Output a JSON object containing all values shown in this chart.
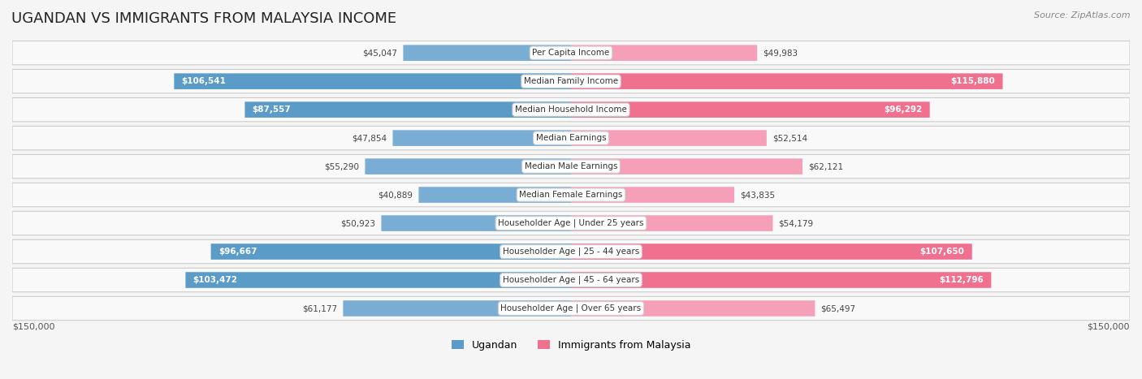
{
  "title": "UGANDAN VS IMMIGRANTS FROM MALAYSIA INCOME",
  "source": "Source: ZipAtlas.com",
  "categories": [
    "Per Capita Income",
    "Median Family Income",
    "Median Household Income",
    "Median Earnings",
    "Median Male Earnings",
    "Median Female Earnings",
    "Householder Age | Under 25 years",
    "Householder Age | 25 - 44 years",
    "Householder Age | 45 - 64 years",
    "Householder Age | Over 65 years"
  ],
  "ugandan_values": [
    45047,
    106541,
    87557,
    47854,
    55290,
    40889,
    50923,
    96667,
    103472,
    61177
  ],
  "malaysia_values": [
    49983,
    115880,
    96292,
    52514,
    62121,
    43835,
    54179,
    107650,
    112796,
    65497
  ],
  "ugandan_color": "#7aadd4",
  "ugandan_color_strong": "#5b9bc8",
  "malaysia_color": "#f5a0b8",
  "malaysia_color_strong": "#f07090",
  "background_color": "#f5f5f5",
  "row_bg_color": "#ffffff",
  "max_value": 150000,
  "legend_ugandan": "Ugandan",
  "legend_malaysia": "Immigrants from Malaysia",
  "x_label_left": "$150,000",
  "x_label_right": "$150,000"
}
